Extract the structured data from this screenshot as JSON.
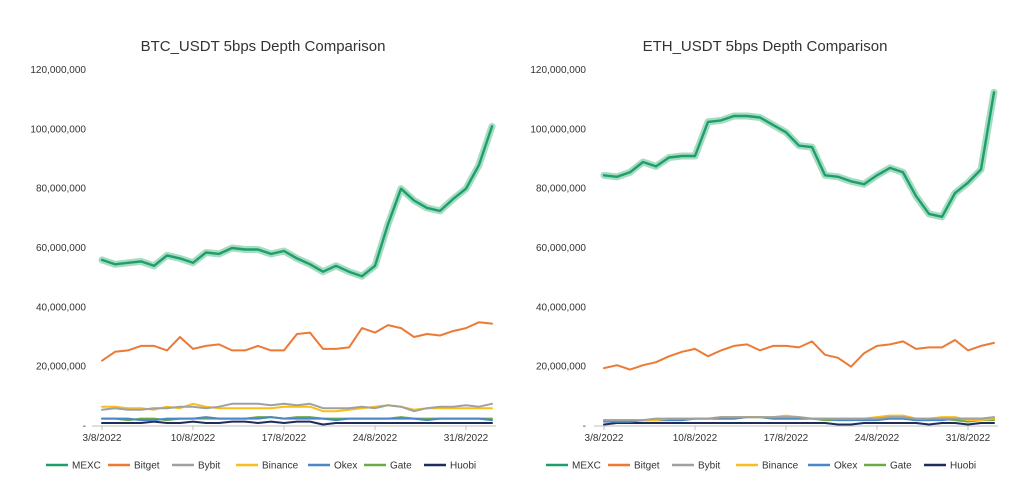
{
  "chart_data": [
    {
      "type": "line",
      "title": "BTC_USDT 5bps Depth Comparison",
      "xlabel": "",
      "ylabel": "",
      "ylim": [
        0,
        120000000
      ],
      "yticks": [
        "-",
        "20,000,000",
        "40,000,000",
        "60,000,000",
        "80,000,000",
        "100,000,000",
        "120,000,000"
      ],
      "xticks": [
        "3/8/2022",
        "10/8/2022",
        "17/8/2022",
        "24/8/2022",
        "31/8/2022"
      ],
      "x": [
        "3/8/2022",
        "4/8/2022",
        "5/8/2022",
        "6/8/2022",
        "7/8/2022",
        "8/8/2022",
        "9/8/2022",
        "10/8/2022",
        "11/8/2022",
        "12/8/2022",
        "13/8/2022",
        "14/8/2022",
        "15/8/2022",
        "16/8/2022",
        "17/8/2022",
        "18/8/2022",
        "19/8/2022",
        "20/8/2022",
        "21/8/2022",
        "22/8/2022",
        "23/8/2022",
        "24/8/2022",
        "25/8/2022",
        "26/8/2022",
        "27/8/2022",
        "28/8/2022",
        "29/8/2022",
        "30/8/2022",
        "31/8/2022",
        "1/9/2022",
        "2/9/2022"
      ],
      "grid": false,
      "legend": "bottom",
      "series": [
        {
          "name": "MEXC",
          "values": [
            56000000,
            54500000,
            55000000,
            55500000,
            54000000,
            57500000,
            56500000,
            55000000,
            58500000,
            58000000,
            60000000,
            59500000,
            59500000,
            58000000,
            59000000,
            56500000,
            54500000,
            52000000,
            54000000,
            52000000,
            50500000,
            54000000,
            68000000,
            80000000,
            76000000,
            73500000,
            72500000,
            76500000,
            80000000,
            88000000,
            101000000
          ]
        },
        {
          "name": "Bitget",
          "values": [
            22000000,
            25000000,
            25500000,
            27000000,
            27000000,
            25500000,
            30000000,
            26000000,
            27000000,
            27500000,
            25500000,
            25500000,
            27000000,
            25500000,
            25500000,
            31000000,
            31500000,
            26000000,
            26000000,
            26500000,
            33000000,
            31500000,
            34000000,
            33000000,
            30000000,
            31000000,
            30500000,
            32000000,
            33000000,
            35000000,
            34500000
          ]
        },
        {
          "name": "Bybit",
          "values": [
            5500000,
            6000000,
            5500000,
            5500000,
            6000000,
            6000000,
            6500000,
            6500000,
            6000000,
            6500000,
            7500000,
            7500000,
            7500000,
            7000000,
            7500000,
            7000000,
            7500000,
            6000000,
            6000000,
            6000000,
            6500000,
            6000000,
            7000000,
            6500000,
            5000000,
            6000000,
            6500000,
            6500000,
            7000000,
            6500000,
            7500000
          ]
        },
        {
          "name": "Binance",
          "values": [
            6500000,
            6500000,
            6000000,
            6000000,
            5500000,
            6500000,
            6000000,
            7500000,
            6500000,
            6000000,
            6000000,
            6000000,
            6000000,
            6000000,
            6500000,
            6500000,
            6500000,
            5000000,
            5000000,
            5500000,
            6000000,
            6500000,
            7000000,
            6500000,
            5500000,
            6000000,
            6000000,
            6000000,
            6000000,
            6000000,
            6000000
          ]
        },
        {
          "name": "Okex",
          "values": [
            2500000,
            2500000,
            2500000,
            2000000,
            2000000,
            2500000,
            2500000,
            2500000,
            3000000,
            2500000,
            2500000,
            2500000,
            2500000,
            3000000,
            2500000,
            2500000,
            2500000,
            2500000,
            2000000,
            2500000,
            2500000,
            2500000,
            2500000,
            2500000,
            2500000,
            2000000,
            2500000,
            2500000,
            2500000,
            2500000,
            2000000
          ]
        },
        {
          "name": "Gate",
          "values": [
            2500000,
            2500000,
            2000000,
            2500000,
            2500000,
            2000000,
            2500000,
            2500000,
            2500000,
            2500000,
            2500000,
            2500000,
            3000000,
            3000000,
            2500000,
            3000000,
            3000000,
            2500000,
            2500000,
            2500000,
            2500000,
            2500000,
            2500000,
            3000000,
            2500000,
            2500000,
            2500000,
            2500000,
            2500000,
            2500000,
            2500000
          ]
        },
        {
          "name": "Huobi",
          "values": [
            1000000,
            1000000,
            1000000,
            1000000,
            1500000,
            1000000,
            1000000,
            1500000,
            1000000,
            1000000,
            1500000,
            1500000,
            1000000,
            1500000,
            1000000,
            1500000,
            1500000,
            500000,
            1000000,
            1000000,
            1000000,
            1000000,
            1000000,
            1000000,
            1000000,
            1000000,
            1000000,
            1000000,
            1000000,
            1000000,
            1000000
          ]
        }
      ]
    },
    {
      "type": "line",
      "title": "ETH_USDT 5bps Depth Comparison",
      "xlabel": "",
      "ylabel": "",
      "ylim": [
        0,
        120000000
      ],
      "yticks": [
        "-",
        "20,000,000",
        "40,000,000",
        "60,000,000",
        "80,000,000",
        "100,000,000",
        "120,000,000"
      ],
      "xticks": [
        "3/8/2022",
        "10/8/2022",
        "17/8/2022",
        "24/8/2022",
        "31/8/2022"
      ],
      "x": [
        "3/8/2022",
        "4/8/2022",
        "5/8/2022",
        "6/8/2022",
        "7/8/2022",
        "8/8/2022",
        "9/8/2022",
        "10/8/2022",
        "11/8/2022",
        "12/8/2022",
        "13/8/2022",
        "14/8/2022",
        "15/8/2022",
        "16/8/2022",
        "17/8/2022",
        "18/8/2022",
        "19/8/2022",
        "20/8/2022",
        "21/8/2022",
        "22/8/2022",
        "23/8/2022",
        "24/8/2022",
        "25/8/2022",
        "26/8/2022",
        "27/8/2022",
        "28/8/2022",
        "29/8/2022",
        "30/8/2022",
        "31/8/2022",
        "1/9/2022",
        "2/9/2022"
      ],
      "grid": false,
      "legend": "bottom",
      "series": [
        {
          "name": "MEXC",
          "values": [
            84500000,
            84000000,
            85500000,
            89000000,
            87500000,
            90500000,
            91000000,
            91000000,
            102500000,
            103000000,
            104500000,
            104500000,
            104000000,
            101500000,
            99000000,
            94500000,
            94000000,
            84500000,
            84000000,
            82500000,
            81500000,
            84500000,
            87000000,
            85500000,
            77500000,
            71500000,
            70500000,
            78500000,
            82000000,
            86500000,
            112500000
          ]
        },
        {
          "name": "Bitget",
          "values": [
            19500000,
            20500000,
            19000000,
            20500000,
            21500000,
            23500000,
            25000000,
            26000000,
            23500000,
            25500000,
            27000000,
            27500000,
            25500000,
            27000000,
            27000000,
            26500000,
            28500000,
            24000000,
            23000000,
            20000000,
            24500000,
            27000000,
            27500000,
            28500000,
            26000000,
            26500000,
            26500000,
            29000000,
            25500000,
            27000000,
            28000000
          ]
        },
        {
          "name": "Bybit",
          "values": [
            2000000,
            2000000,
            2000000,
            2000000,
            2500000,
            2500000,
            2500000,
            2500000,
            2500000,
            3000000,
            3000000,
            3000000,
            3000000,
            3000000,
            3000000,
            3000000,
            2500000,
            2500000,
            2500000,
            2500000,
            2500000,
            2500000,
            3000000,
            3000000,
            2500000,
            2500000,
            2500000,
            2500000,
            2500000,
            2500000,
            3000000
          ]
        },
        {
          "name": "Binance",
          "values": [
            2000000,
            2000000,
            2000000,
            2000000,
            2000000,
            2500000,
            2500000,
            2500000,
            2500000,
            3000000,
            3000000,
            3000000,
            3000000,
            3000000,
            3500000,
            3000000,
            2500000,
            2500000,
            2500000,
            2500000,
            2500000,
            3000000,
            3500000,
            3500000,
            2500000,
            2500000,
            3000000,
            3000000,
            2000000,
            2000000,
            2500000
          ]
        },
        {
          "name": "Okex",
          "values": [
            1500000,
            1500000,
            1500000,
            2000000,
            2000000,
            2000000,
            2000000,
            2500000,
            2500000,
            2500000,
            2500000,
            3000000,
            3000000,
            2500000,
            2500000,
            2500000,
            2500000,
            2500000,
            2000000,
            2000000,
            2000000,
            2000000,
            2500000,
            2500000,
            2000000,
            2000000,
            2000000,
            2500000,
            2500000,
            2500000,
            2500000
          ]
        },
        {
          "name": "Gate",
          "values": [
            2000000,
            1500000,
            1500000,
            2000000,
            2000000,
            2000000,
            2000000,
            2500000,
            2500000,
            2500000,
            2500000,
            3000000,
            3000000,
            2500000,
            2500000,
            2500000,
            2500000,
            2000000,
            2000000,
            2000000,
            2500000,
            2500000,
            2500000,
            2500000,
            2000000,
            2000000,
            2500000,
            2000000,
            1500000,
            2000000,
            2000000
          ]
        },
        {
          "name": "Huobi",
          "values": [
            500000,
            1000000,
            1000000,
            1000000,
            1000000,
            1000000,
            1000000,
            1000000,
            1000000,
            1000000,
            1000000,
            1000000,
            1000000,
            1000000,
            1000000,
            1000000,
            1000000,
            1000000,
            500000,
            500000,
            1000000,
            1000000,
            1000000,
            1000000,
            1000000,
            500000,
            1000000,
            1000000,
            500000,
            1000000,
            1000000
          ]
        }
      ]
    }
  ],
  "colors": {
    "MEXC": "#1e9e6b",
    "MEXC_glow": "#a6ddc2",
    "Bitget": "#ec7a35",
    "Bybit": "#a0a0a0",
    "Binance": "#f7be1c",
    "Okex": "#4a86c8",
    "Gate": "#6aaa48",
    "Huobi": "#1f2d5c",
    "text": "#333333",
    "axis": "#bfbfbf"
  }
}
